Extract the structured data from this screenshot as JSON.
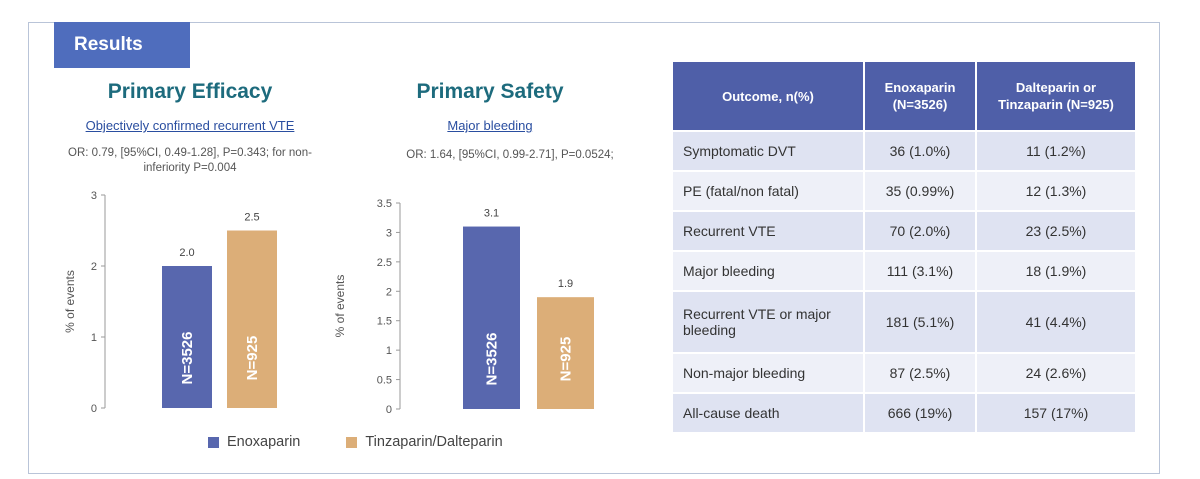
{
  "section_tab": "Results",
  "charts": {
    "efficacy": {
      "title": "Primary Efficacy",
      "subtitle": "Objectively confirmed recurrent VTE",
      "stat_line1": "OR: 0.79, [95%CI, 0.49-1.28], P=0.343; for non-",
      "stat_line2": "inferiority P=0.004"
    },
    "safety": {
      "title": "Primary Safety",
      "subtitle": "Major bleeding",
      "stat_line1": "OR: 1.64, [95%CI, 0.99-2.71], P=0.0524;"
    }
  },
  "chart_data": [
    {
      "type": "bar",
      "title": "Primary Efficacy",
      "ylabel": "% of events",
      "ylim": [
        0,
        3
      ],
      "yticks": [
        "0",
        "1",
        "2",
        "3"
      ],
      "categories": [
        "Enoxaparin",
        "Tinzaparin/Dalteparin"
      ],
      "values": [
        2.0,
        2.5
      ],
      "value_labels": [
        "2.0",
        "2.5"
      ],
      "bar_labels": [
        "N=3526",
        "N=925"
      ],
      "colors": [
        "#5867ae",
        "#dcae78"
      ]
    },
    {
      "type": "bar",
      "title": "Primary Safety",
      "ylabel": "% of events",
      "ylim": [
        0,
        3.5
      ],
      "yticks": [
        "0",
        "0.5",
        "1",
        "1.5",
        "2",
        "2.5",
        "3",
        "3.5"
      ],
      "categories": [
        "Enoxaparin",
        "Tinzaparin/Dalteparin"
      ],
      "values": [
        3.1,
        1.9
      ],
      "value_labels": [
        "3.1",
        "1.9"
      ],
      "bar_labels": [
        "N=3526",
        "N=925"
      ],
      "colors": [
        "#5867ae",
        "#dcae78"
      ]
    }
  ],
  "legend": {
    "items": [
      {
        "label": "Enoxaparin",
        "color": "#5867ae"
      },
      {
        "label": "Tinzaparin/Dalteparin",
        "color": "#dcae78"
      }
    ]
  },
  "table": {
    "headers": [
      "Outcome, n(%)",
      "Enoxaparin (N=3526)",
      "Dalteparin or Tinzaparin (N=925)"
    ],
    "rows": [
      [
        "Symptomatic DVT",
        "36 (1.0%)",
        "11 (1.2%)"
      ],
      [
        "PE (fatal/non fatal)",
        "35 (0.99%)",
        "12 (1.3%)"
      ],
      [
        "Recurrent VTE",
        "70 (2.0%)",
        "23 (2.5%)"
      ],
      [
        "Major bleeding",
        "111 (3.1%)",
        "18 (1.9%)"
      ],
      [
        "Recurrent VTE or major bleeding",
        "181 (5.1%)",
        "41 (4.4%)"
      ],
      [
        "Non-major bleeding",
        "87 (2.5%)",
        "24 (2.6%)"
      ],
      [
        "All-cause death",
        "666 (19%)",
        "157 (17%)"
      ]
    ]
  }
}
